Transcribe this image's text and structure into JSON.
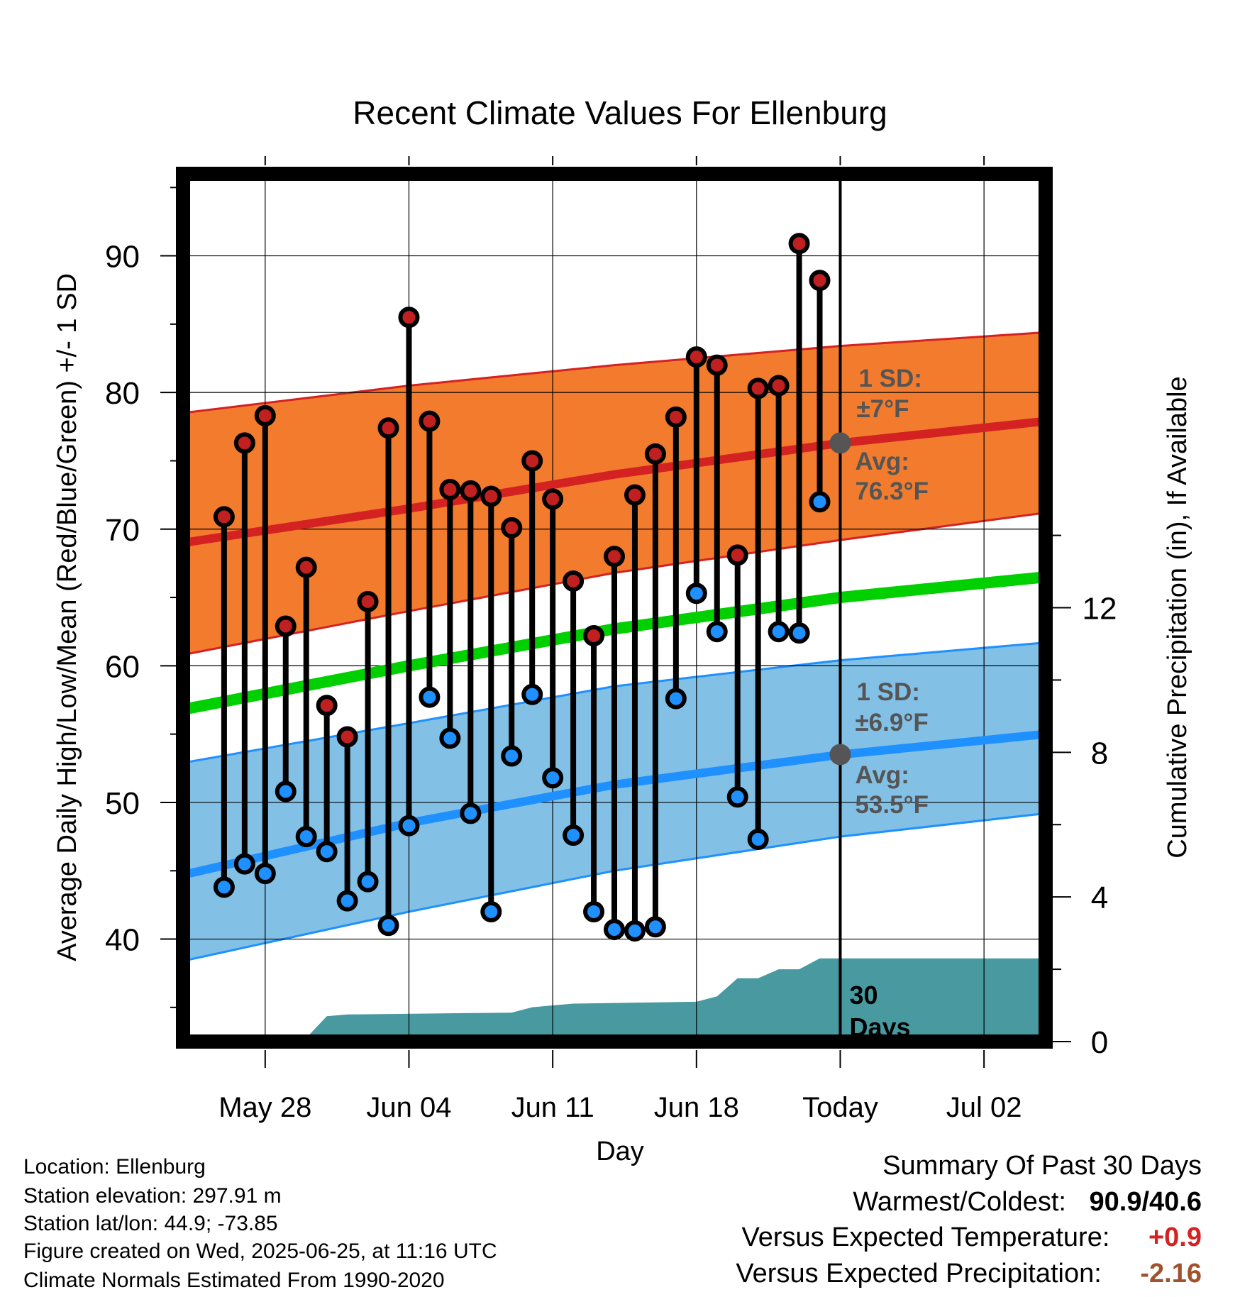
{
  "chart_data": {
    "type": "line",
    "title": "Recent Climate Values For Ellenburg",
    "xlabel": "Day",
    "ylabel": "Average Daily High/Low/Mean (Red/Blue/Green) +/- 1 SD",
    "y2label": "Cumulative Precipitation (in), If Available",
    "ylim": [
      32.5,
      96
    ],
    "y2lim": [
      0,
      24
    ],
    "yticks": [
      "40",
      "50",
      "60",
      "70",
      "80",
      "90"
    ],
    "y2ticks": [
      "0",
      "4",
      "8",
      "12"
    ],
    "xlim": [
      "2025-05-24",
      "2025-07-05"
    ],
    "xticks": [
      {
        "date": "2025-05-28",
        "label": "May 28"
      },
      {
        "date": "2025-06-04",
        "label": "Jun 04"
      },
      {
        "date": "2025-06-11",
        "label": "Jun 11"
      },
      {
        "date": "2025-06-18",
        "label": "Jun 18"
      },
      {
        "date": "2025-06-25",
        "label": "Today"
      },
      {
        "date": "2025-07-02",
        "label": "Jul 02"
      }
    ],
    "dates": [
      "2025-05-26",
      "2025-05-27",
      "2025-05-28",
      "2025-05-29",
      "2025-05-30",
      "2025-05-31",
      "2025-06-01",
      "2025-06-02",
      "2025-06-03",
      "2025-06-04",
      "2025-06-05",
      "2025-06-06",
      "2025-06-07",
      "2025-06-08",
      "2025-06-09",
      "2025-06-10",
      "2025-06-11",
      "2025-06-12",
      "2025-06-13",
      "2025-06-14",
      "2025-06-15",
      "2025-06-16",
      "2025-06-17",
      "2025-06-18",
      "2025-06-19",
      "2025-06-20",
      "2025-06-21",
      "2025-06-22",
      "2025-06-23",
      "2025-06-24"
    ],
    "daily_high": [
      70.9,
      76.3,
      78.3,
      62.9,
      67.2,
      57.1,
      54.8,
      64.7,
      77.4,
      85.5,
      77.9,
      72.9,
      72.8,
      72.4,
      70.1,
      75.0,
      72.2,
      66.2,
      62.2,
      68.0,
      72.5,
      75.5,
      78.2,
      82.6,
      82.0,
      68.1,
      80.3,
      80.5,
      90.9,
      88.2
    ],
    "daily_low": [
      43.8,
      45.5,
      44.8,
      50.8,
      47.5,
      46.4,
      42.8,
      44.2,
      41.0,
      48.3,
      57.7,
      54.7,
      49.2,
      42.0,
      53.4,
      57.9,
      51.8,
      47.6,
      42.0,
      40.7,
      40.6,
      40.9,
      57.6,
      65.3,
      62.5,
      50.4,
      47.3,
      62.5,
      62.4,
      72.0
    ],
    "normal_series": [
      {
        "name": "high_mean",
        "x": [
          "2025-05-24",
          "2025-06-04",
          "2025-06-14",
          "2025-06-25",
          "2025-07-05"
        ],
        "values": [
          69.0,
          71.5,
          74.0,
          76.3,
          77.9
        ]
      },
      {
        "name": "high_plus_sd",
        "x": [
          "2025-05-24",
          "2025-06-04",
          "2025-06-14",
          "2025-06-25",
          "2025-07-05"
        ],
        "values": [
          78.5,
          80.5,
          82.0,
          83.4,
          84.4
        ]
      },
      {
        "name": "high_minus_sd",
        "x": [
          "2025-05-24",
          "2025-06-04",
          "2025-06-14",
          "2025-06-25",
          "2025-07-05"
        ],
        "values": [
          60.8,
          64.0,
          66.8,
          69.2,
          71.2
        ]
      },
      {
        "name": "mean",
        "x": [
          "2025-05-24",
          "2025-06-04",
          "2025-06-14",
          "2025-06-25",
          "2025-07-05"
        ],
        "values": [
          56.8,
          60.0,
          62.7,
          65.0,
          66.5
        ]
      },
      {
        "name": "low_mean",
        "x": [
          "2025-05-24",
          "2025-06-04",
          "2025-06-14",
          "2025-06-25",
          "2025-07-05"
        ],
        "values": [
          44.7,
          48.5,
          51.3,
          53.5,
          55.0
        ]
      },
      {
        "name": "low_plus_sd",
        "x": [
          "2025-05-24",
          "2025-06-04",
          "2025-06-14",
          "2025-06-25",
          "2025-07-05"
        ],
        "values": [
          52.9,
          55.8,
          58.5,
          60.4,
          61.7
        ]
      },
      {
        "name": "low_minus_sd",
        "x": [
          "2025-05-24",
          "2025-06-04",
          "2025-06-14",
          "2025-06-25",
          "2025-07-05"
        ],
        "values": [
          38.4,
          42.0,
          45.0,
          47.5,
          49.2
        ]
      }
    ],
    "precip_cumulative": {
      "x": [
        "2025-05-24",
        "2025-05-28",
        "2025-05-29",
        "2025-05-30",
        "2025-05-31",
        "2025-06-01",
        "2025-06-09",
        "2025-06-10",
        "2025-06-11",
        "2025-06-12",
        "2025-06-18",
        "2025-06-19",
        "2025-06-20",
        "2025-06-21",
        "2025-06-22",
        "2025-06-23",
        "2025-06-24",
        "2025-07-05"
      ],
      "values": [
        0.0,
        0.0,
        0.1,
        0.1,
        0.7,
        0.75,
        0.8,
        0.95,
        1.0,
        1.05,
        1.1,
        1.25,
        1.75,
        1.75,
        2.0,
        2.0,
        2.3,
        2.3
      ]
    },
    "sd_labels": [
      {
        "band": "high",
        "label": "1 SD:",
        "value": "±7°F",
        "avg_label": "Avg:",
        "avg_value": "76.3°F"
      },
      {
        "band": "low",
        "label": "1 SD:",
        "value": "±6.9°F",
        "avg_label": "Avg:",
        "avg_value": "53.5°F"
      }
    ],
    "period_label_line1": "30",
    "period_label_line2": "Days",
    "colors": {
      "high_band": "#f27b2e",
      "high_mean": "#d42222",
      "low_band": "#82c0e6",
      "low_mean": "#1e90ff",
      "mean": "#00d000",
      "precip": "#489aa0",
      "high_marker": "#c02020",
      "low_marker": "#1e90ff",
      "annotation": "#555555"
    }
  },
  "info": {
    "location": "Location: Ellenburg",
    "elevation": "Station elevation: 297.91 m",
    "latlon": "Station lat/lon: 44.9; -73.85",
    "created": "Figure created on Wed, 2025-06-25, at 11:16 UTC",
    "normals": "Climate Normals Estimated From 1990-2020"
  },
  "summary": {
    "title": "Summary Of Past 30 Days",
    "warm_cold_label": "Warmest/Coldest:",
    "warm_cold_value": "90.9/40.6",
    "temp_label": "Versus Expected Temperature:",
    "temp_value": "+0.9",
    "temp_color": "#d42222",
    "precip_label": "Versus Expected Precipitation:",
    "precip_value": "-2.16",
    "precip_color": "#a0522d"
  }
}
